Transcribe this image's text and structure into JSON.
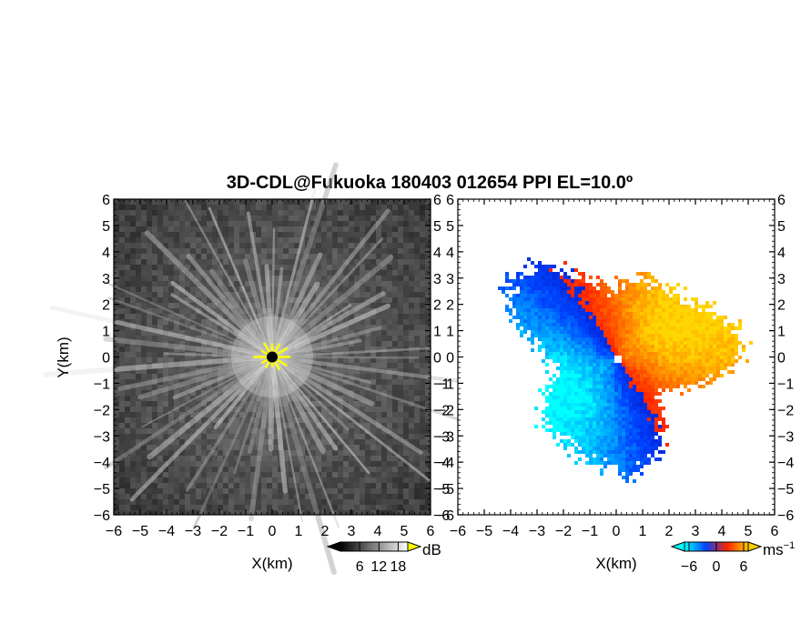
{
  "chart_data": {
    "type": "heatmap",
    "title": "3D-CDL@Fukuoka 180403 012654 PPI EL=10.0º",
    "panels": [
      {
        "name": "reflectivity",
        "xlabel": "X(km)",
        "ylabel": "Y(km)",
        "xlim": [
          -6,
          6
        ],
        "ylim": [
          -6,
          6
        ],
        "xticks": [
          "−6",
          "−5",
          "−4",
          "−3",
          "−2",
          "−1",
          "0",
          "1",
          "2",
          "3",
          "4",
          "5",
          "6"
        ],
        "yticks": [
          "−6",
          "−5",
          "−4",
          "−3",
          "−2",
          "−1",
          "0",
          "1",
          "2",
          "3",
          "4",
          "5",
          "6"
        ],
        "colormap": "grayscale",
        "colorbar": {
          "unit": "dB",
          "ticks": [
            "6",
            "12",
            "18"
          ],
          "range": [
            0,
            21
          ],
          "extend": "both",
          "colors": [
            "#000000",
            "#ffffff"
          ],
          "over_color": "#ffff00"
        }
      },
      {
        "name": "doppler-velocity",
        "xlabel": "X(km)",
        "ylabel": "",
        "xlim": [
          -6,
          6
        ],
        "ylim": [
          -6,
          6
        ],
        "xticks": [
          "−6",
          "−5",
          "−4",
          "−3",
          "−2",
          "−1",
          "0",
          "1",
          "2",
          "3",
          "4",
          "5",
          "6"
        ],
        "yticks": [
          "−6",
          "−5",
          "−4",
          "−3",
          "−2",
          "−1",
          "0",
          "1",
          "2",
          "3",
          "4",
          "5",
          "6"
        ],
        "colormap": "diverging-blue-red",
        "colorbar": {
          "unit": "ms",
          "unit_sup": "−1",
          "ticks": [
            "−6",
            "0",
            "6"
          ],
          "range": [
            -7,
            7
          ],
          "extend": "both",
          "colors": [
            "#00ffff",
            "#0044ff",
            "#ff2200",
            "#ffcc00"
          ]
        }
      }
    ]
  }
}
